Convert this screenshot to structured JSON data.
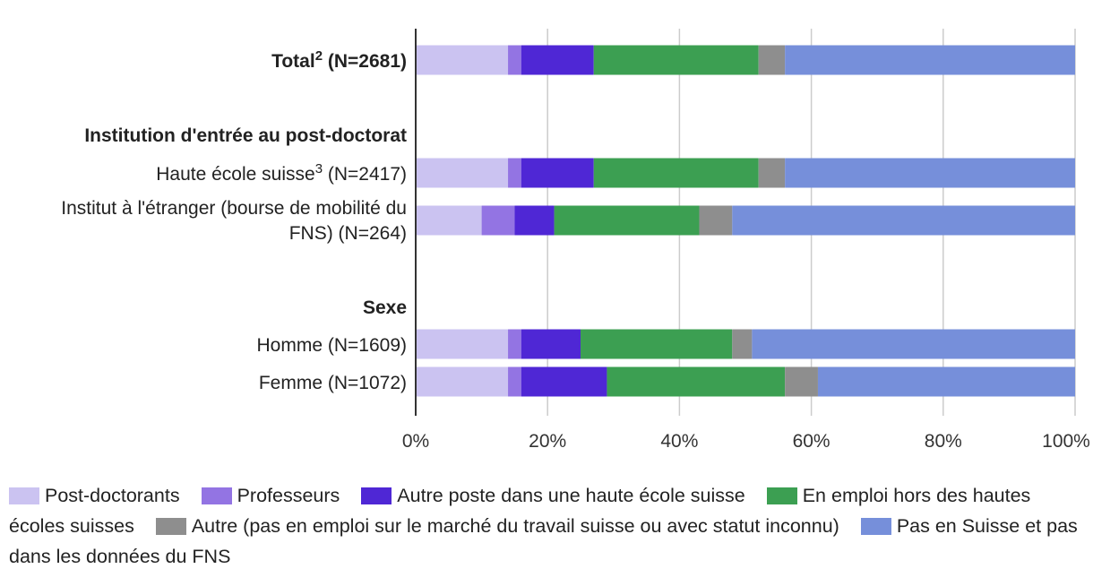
{
  "chart_data": {
    "type": "bar",
    "orientation": "horizontal",
    "stacked": true,
    "xlim": [
      0,
      100
    ],
    "xticks": [
      "0%",
      "20%",
      "40%",
      "60%",
      "80%",
      "100%"
    ],
    "grid": true,
    "legend_position": "bottom",
    "colors": [
      "#cbc3f1",
      "#9374e3",
      "#4f27d5",
      "#3c9f52",
      "#8e8e8e",
      "#768fda"
    ],
    "series_names": [
      "Post-doctorants",
      "Professeurs",
      "Autre poste dans une haute école suisse",
      "En emploi hors des hautes écoles suisses",
      "Autre (pas en emploi sur le marché du travail suisse ou avec statut inconnu)",
      "Pas en Suisse et pas dans les données du FNS"
    ],
    "rows": [
      {
        "label": "Total",
        "sup": "2",
        "suffix": " (N=2681)",
        "bold": true,
        "values": [
          14,
          2,
          11,
          25,
          4,
          44
        ]
      },
      {
        "label": "Institution d'entrée au post-doctorat",
        "bold": true,
        "heading": true
      },
      {
        "label": "Haute école suisse",
        "sup": "3",
        "suffix": " (N=2417)",
        "values": [
          14,
          2,
          11,
          25,
          4,
          44
        ]
      },
      {
        "label": "Institut à l'étranger (bourse de mobilité du",
        "label2": "FNS) (N=264)",
        "values": [
          10,
          5,
          6,
          22,
          5,
          52
        ]
      },
      {
        "label": "Sexe",
        "bold": true,
        "heading": true
      },
      {
        "label": "Homme (N=1609)",
        "values": [
          14,
          2,
          9,
          23,
          3,
          49
        ]
      },
      {
        "label": "Femme (N=1072)",
        "values": [
          14,
          2,
          13,
          27,
          5,
          39
        ]
      }
    ]
  },
  "legend": {
    "items": [
      "Post-doctorants",
      "Professeurs",
      "Autre poste dans une haute école suisse",
      "En emploi hors des hautes écoles suisses",
      "Autre (pas en emploi sur le marché du travail suisse ou avec statut inconnu)",
      "Pas en Suisse et pas dans les données du FNS"
    ]
  }
}
